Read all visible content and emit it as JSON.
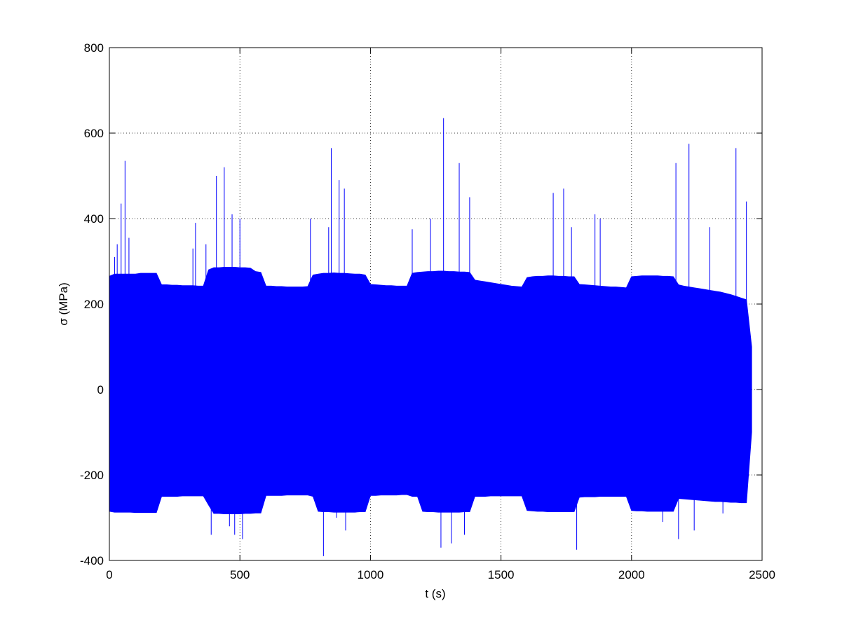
{
  "chart_data": {
    "type": "area",
    "xlabel": "t (s)",
    "ylabel": "σ (MPa)",
    "xlim": [
      0,
      2500
    ],
    "ylim": [
      -400,
      800
    ],
    "xticks": [
      0,
      500,
      1000,
      1500,
      2000,
      2500
    ],
    "yticks": [
      -400,
      -200,
      0,
      200,
      400,
      600,
      800
    ],
    "grid": true,
    "color": "#0000ff",
    "x": [
      0,
      20,
      40,
      60,
      80,
      100,
      120,
      140,
      160,
      180,
      200,
      220,
      240,
      260,
      280,
      300,
      320,
      340,
      360,
      380,
      400,
      420,
      440,
      460,
      480,
      500,
      520,
      540,
      560,
      580,
      600,
      620,
      640,
      660,
      680,
      700,
      720,
      740,
      760,
      780,
      800,
      820,
      840,
      860,
      880,
      900,
      920,
      940,
      960,
      980,
      1000,
      1020,
      1040,
      1060,
      1080,
      1100,
      1120,
      1140,
      1160,
      1180,
      1200,
      1220,
      1240,
      1260,
      1280,
      1300,
      1320,
      1340,
      1360,
      1380,
      1400,
      1420,
      1440,
      1460,
      1480,
      1500,
      1520,
      1540,
      1560,
      1580,
      1600,
      1620,
      1640,
      1660,
      1680,
      1700,
      1720,
      1740,
      1760,
      1780,
      1800,
      1820,
      1840,
      1860,
      1880,
      1900,
      1920,
      1940,
      1960,
      1980,
      2000,
      2020,
      2040,
      2060,
      2080,
      2100,
      2120,
      2140,
      2160,
      2180,
      2200,
      2220,
      2240,
      2260,
      2280,
      2300,
      2320,
      2340,
      2360,
      2380,
      2400,
      2420,
      2440,
      2460
    ],
    "upper": [
      265,
      270,
      270,
      270,
      270,
      270,
      272,
      272,
      272,
      272,
      245,
      245,
      244,
      244,
      243,
      243,
      243,
      242,
      242,
      280,
      285,
      285,
      286,
      286,
      286,
      285,
      285,
      284,
      276,
      274,
      242,
      242,
      241,
      241,
      240,
      240,
      240,
      240,
      241,
      268,
      270,
      272,
      272,
      273,
      272,
      272,
      271,
      270,
      270,
      268,
      246,
      245,
      244,
      243,
      243,
      242,
      242,
      242,
      272,
      274,
      275,
      276,
      276,
      277,
      277,
      276,
      276,
      275,
      275,
      274,
      256,
      254,
      252,
      250,
      248,
      246,
      244,
      242,
      241,
      240,
      262,
      264,
      265,
      265,
      266,
      266,
      265,
      265,
      264,
      264,
      246,
      245,
      244,
      243,
      242,
      241,
      240,
      240,
      239,
      238,
      264,
      265,
      266,
      266,
      266,
      266,
      265,
      265,
      264,
      245,
      242,
      240,
      238,
      236,
      234,
      232,
      230,
      228,
      225,
      222,
      218,
      214,
      210,
      100
    ],
    "lower": [
      -285,
      -287,
      -287,
      -287,
      -287,
      -288,
      -288,
      -288,
      -288,
      -288,
      -250,
      -250,
      -250,
      -250,
      -249,
      -249,
      -249,
      -249,
      -249,
      -270,
      -290,
      -290,
      -291,
      -291,
      -291,
      -291,
      -290,
      -290,
      -289,
      -289,
      -248,
      -248,
      -248,
      -248,
      -247,
      -247,
      -247,
      -247,
      -247,
      -250,
      -285,
      -286,
      -286,
      -287,
      -287,
      -287,
      -287,
      -287,
      -286,
      -286,
      -248,
      -248,
      -247,
      -247,
      -247,
      -247,
      -246,
      -246,
      -250,
      -250,
      -285,
      -286,
      -286,
      -287,
      -287,
      -287,
      -287,
      -287,
      -286,
      -286,
      -250,
      -250,
      -250,
      -249,
      -249,
      -249,
      -249,
      -249,
      -249,
      -249,
      -283,
      -284,
      -285,
      -285,
      -286,
      -286,
      -286,
      -286,
      -286,
      -286,
      -252,
      -251,
      -251,
      -251,
      -250,
      -250,
      -250,
      -250,
      -250,
      -250,
      -283,
      -284,
      -284,
      -285,
      -285,
      -285,
      -285,
      -285,
      -285,
      -255,
      -256,
      -257,
      -258,
      -259,
      -260,
      -261,
      -262,
      -262,
      -263,
      -264,
      -264,
      -265,
      -265,
      -100
    ],
    "spikes": {
      "x": [
        20,
        30,
        45,
        60,
        75,
        320,
        330,
        370,
        390,
        410,
        440,
        460,
        470,
        480,
        500,
        510,
        770,
        820,
        840,
        850,
        870,
        880,
        900,
        905,
        1160,
        1230,
        1270,
        1280,
        1310,
        1340,
        1360,
        1380,
        1700,
        1740,
        1770,
        1790,
        1860,
        1880,
        2120,
        2170,
        2180,
        2220,
        2240,
        2300,
        2350,
        2400,
        2440
      ],
      "values": [
        310,
        340,
        435,
        535,
        355,
        330,
        390,
        340,
        -340,
        500,
        520,
        -320,
        410,
        -340,
        400,
        -350,
        400,
        -390,
        380,
        565,
        -300,
        490,
        470,
        -330,
        375,
        400,
        -370,
        635,
        -360,
        530,
        -340,
        450,
        460,
        470,
        380,
        -375,
        410,
        400,
        -310,
        530,
        -350,
        575,
        -330,
        380,
        -290,
        565,
        440
      ]
    }
  }
}
